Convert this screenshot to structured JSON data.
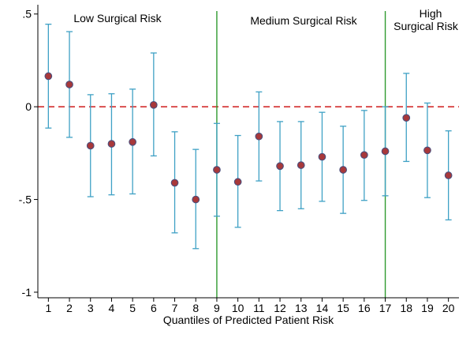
{
  "chart_data": {
    "type": "scatter",
    "title": "",
    "xlabel": "Quantiles of Predicted Patient Risk",
    "ylabel": "",
    "x": [
      1,
      2,
      3,
      4,
      5,
      6,
      7,
      8,
      9,
      10,
      11,
      12,
      13,
      14,
      15,
      16,
      17,
      18,
      19,
      20
    ],
    "x_ticks": [
      "1",
      "2",
      "3",
      "4",
      "5",
      "6",
      "7",
      "8",
      "9",
      "10",
      "11",
      "12",
      "13",
      "14",
      "15",
      "16",
      "17",
      "18",
      "19",
      "20"
    ],
    "xlim": [
      0.5,
      20.5
    ],
    "ylim": [
      -1.03,
      0.55
    ],
    "y_ticks": [
      0.5,
      0,
      -0.5,
      -1
    ],
    "y_tick_labels": [
      ".5",
      "0",
      "-.5",
      "-1"
    ],
    "grid": false,
    "series": [
      {
        "estimate": [
          0.165,
          0.12,
          -0.21,
          -0.2,
          -0.19,
          0.01,
          -0.41,
          -0.5,
          -0.34,
          -0.405,
          -0.16,
          -0.32,
          -0.315,
          -0.27,
          -0.34,
          -0.26,
          -0.24,
          -0.06,
          -0.235,
          -0.37
        ],
        "ci_upper": [
          0.445,
          0.405,
          0.065,
          0.07,
          0.095,
          0.29,
          -0.135,
          -0.23,
          -0.09,
          -0.155,
          0.08,
          -0.08,
          -0.08,
          -0.03,
          -0.105,
          -0.02,
          0.0,
          0.18,
          0.02,
          -0.13
        ],
        "ci_lower": [
          -0.115,
          -0.165,
          -0.485,
          -0.475,
          -0.47,
          -0.265,
          -0.68,
          -0.765,
          -0.59,
          -0.65,
          -0.4,
          -0.56,
          -0.55,
          -0.51,
          -0.575,
          -0.505,
          -0.48,
          -0.295,
          -0.49,
          -0.61
        ]
      }
    ],
    "reference_line_y": 0,
    "dividers_x": [
      9,
      17
    ],
    "regions": [
      {
        "label_lines": [
          "Low Surgical Risk"
        ]
      },
      {
        "label_lines": [
          "Medium Surgical Risk"
        ]
      },
      {
        "label_lines": [
          "High",
          "Surgical Risk"
        ]
      }
    ],
    "colors": {
      "marker_fill": "#a8383a",
      "marker_edge": "#4b4e7c",
      "error_bar": "#3fa1c5",
      "reference_line": "#d22c2c",
      "divider": "#2f9a2f",
      "axis": "#000000"
    }
  }
}
